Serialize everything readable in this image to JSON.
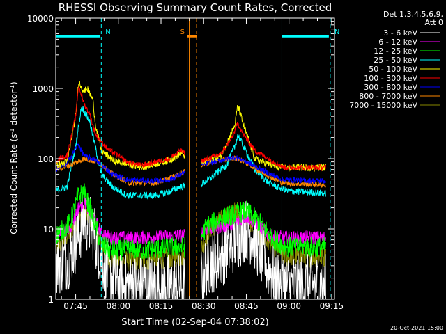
{
  "chart_data": {
    "type": "line",
    "title": "RHESSI Observing Summary Count Rates, Corrected",
    "xlabel": "Start Time (02-Sep-04 07:38:02)",
    "ylabel": "Corrected Count Rate (s⁻¹ detector⁻¹)",
    "ylabel_parts": {
      "pre": "Corrected Count Rate (s",
      "sup1": "-1",
      "mid": " detector",
      "sup2": "-1",
      "post": ")"
    },
    "yscale": "log",
    "xlim_min": [
      0,
      98
    ],
    "ylim": [
      1,
      10000
    ],
    "x_ticks": [
      {
        "label": "07:45",
        "min": 7
      },
      {
        "label": "08:00",
        "min": 22
      },
      {
        "label": "08:15",
        "min": 37
      },
      {
        "label": "08:30",
        "min": 52
      },
      {
        "label": "08:45",
        "min": 67
      },
      {
        "label": "09:00",
        "min": 82
      },
      {
        "label": "09:15",
        "min": 97
      }
    ],
    "y_ticks": [
      {
        "label": "1",
        "value": 1
      },
      {
        "label": "10",
        "value": 10
      },
      {
        "label": "100",
        "value": 100
      },
      {
        "label": "1000",
        "value": 1000
      },
      {
        "label": "10000",
        "value": 10000
      }
    ],
    "legend_header": [
      "Det 1,3,4,5,6,9,",
      "Att 0"
    ],
    "legend_position": "right",
    "series": [
      {
        "name": "3 - 6 keV",
        "color": "#ffffff",
        "noise": 0.45,
        "points": [
          [
            0,
            3
          ],
          [
            5,
            4
          ],
          [
            8,
            8
          ],
          [
            10,
            14
          ],
          [
            13,
            10
          ],
          [
            16,
            4
          ],
          [
            19,
            2
          ],
          [
            22,
            1.6
          ],
          [
            30,
            1.6
          ],
          [
            44,
            1.6
          ],
          [
            50,
            1.6
          ],
          [
            53,
            3
          ],
          [
            58,
            4
          ],
          [
            62,
            6
          ],
          [
            65,
            8
          ],
          [
            67,
            10
          ],
          [
            70,
            7
          ],
          [
            74,
            3
          ],
          [
            77,
            2
          ],
          [
            81,
            1.6
          ],
          [
            90,
            1.6
          ],
          [
            95,
            1.6
          ]
        ]
      },
      {
        "name": "6 - 12 keV",
        "color": "#ff00ff",
        "noise": 0.1,
        "points": [
          [
            0,
            8
          ],
          [
            5,
            10
          ],
          [
            8,
            20
          ],
          [
            10,
            25
          ],
          [
            13,
            15
          ],
          [
            16,
            9
          ],
          [
            19,
            7.5
          ],
          [
            30,
            7.5
          ],
          [
            44,
            8
          ],
          [
            50,
            8
          ],
          [
            53,
            10
          ],
          [
            60,
            11
          ],
          [
            67,
            15
          ],
          [
            71,
            12
          ],
          [
            75,
            8
          ],
          [
            81,
            7.5
          ],
          [
            95,
            7.5
          ]
        ]
      },
      {
        "name": "12 - 25 keV",
        "color": "#00ff00",
        "noise": 0.15,
        "points": [
          [
            0,
            8
          ],
          [
            5,
            12
          ],
          [
            8,
            30
          ],
          [
            10,
            33
          ],
          [
            13,
            15
          ],
          [
            16,
            6
          ],
          [
            19,
            5
          ],
          [
            30,
            5
          ],
          [
            44,
            5.5
          ],
          [
            50,
            6
          ],
          [
            53,
            11
          ],
          [
            60,
            15
          ],
          [
            67,
            18
          ],
          [
            72,
            12
          ],
          [
            77,
            7
          ],
          [
            81,
            5.5
          ],
          [
            95,
            5.5
          ]
        ]
      },
      {
        "name": "25 - 50 keV",
        "color": "#00ffff",
        "noise": 0.05,
        "points": [
          [
            0,
            35
          ],
          [
            4,
            40
          ],
          [
            7,
            150
          ],
          [
            9,
            550
          ],
          [
            10,
            480
          ],
          [
            12,
            330
          ],
          [
            14,
            140
          ],
          [
            16,
            60
          ],
          [
            20,
            40
          ],
          [
            25,
            30
          ],
          [
            35,
            30
          ],
          [
            40,
            34
          ],
          [
            44,
            40
          ],
          [
            50,
            40
          ],
          [
            55,
            55
          ],
          [
            60,
            80
          ],
          [
            63,
            150
          ],
          [
            64,
            220
          ],
          [
            66,
            150
          ],
          [
            70,
            70
          ],
          [
            75,
            45
          ],
          [
            81,
            35
          ],
          [
            95,
            32
          ]
        ]
      },
      {
        "name": "50 - 100 keV",
        "color": "#ffff00",
        "noise": 0.05,
        "points": [
          [
            0,
            80
          ],
          [
            4,
            90
          ],
          [
            7,
            400
          ],
          [
            8,
            1250
          ],
          [
            10,
            900
          ],
          [
            11,
            1000
          ],
          [
            13,
            700
          ],
          [
            14,
            300
          ],
          [
            16,
            130
          ],
          [
            20,
            95
          ],
          [
            30,
            75
          ],
          [
            40,
            95
          ],
          [
            44,
            120
          ],
          [
            50,
            85
          ],
          [
            58,
            110
          ],
          [
            63,
            300
          ],
          [
            64,
            580
          ],
          [
            66,
            300
          ],
          [
            70,
            100
          ],
          [
            78,
            75
          ],
          [
            95,
            75
          ]
        ]
      },
      {
        "name": "100 - 300 keV",
        "color": "#ff0000",
        "noise": 0.04,
        "points": [
          [
            0,
            95
          ],
          [
            4,
            110
          ],
          [
            7,
            400
          ],
          [
            8,
            1100
          ],
          [
            10,
            600
          ],
          [
            12,
            420
          ],
          [
            14,
            220
          ],
          [
            18,
            140
          ],
          [
            25,
            90
          ],
          [
            30,
            80
          ],
          [
            40,
            100
          ],
          [
            44,
            130
          ],
          [
            50,
            90
          ],
          [
            58,
            115
          ],
          [
            62,
            200
          ],
          [
            64,
            320
          ],
          [
            66,
            220
          ],
          [
            70,
            130
          ],
          [
            80,
            75
          ],
          [
            95,
            75
          ]
        ]
      },
      {
        "name": "300 - 800 keV",
        "color": "#0000ff",
        "noise": 0.04,
        "points": [
          [
            0,
            70
          ],
          [
            4,
            85
          ],
          [
            7,
            140
          ],
          [
            8,
            160
          ],
          [
            9,
            130
          ],
          [
            10,
            110
          ],
          [
            14,
            95
          ],
          [
            20,
            60
          ],
          [
            25,
            50
          ],
          [
            35,
            48
          ],
          [
            40,
            50
          ],
          [
            44,
            60
          ],
          [
            50,
            80
          ],
          [
            58,
            95
          ],
          [
            63,
            105
          ],
          [
            66,
            95
          ],
          [
            72,
            70
          ],
          [
            80,
            50
          ],
          [
            95,
            48
          ]
        ]
      },
      {
        "name": "800 - 7000 keV",
        "color": "#ff8800",
        "noise": 0.04,
        "points": [
          [
            0,
            70
          ],
          [
            5,
            80
          ],
          [
            10,
            100
          ],
          [
            15,
            90
          ],
          [
            20,
            60
          ],
          [
            26,
            45
          ],
          [
            35,
            45
          ],
          [
            40,
            52
          ],
          [
            44,
            62
          ],
          [
            50,
            80
          ],
          [
            58,
            95
          ],
          [
            63,
            102
          ],
          [
            66,
            92
          ],
          [
            72,
            65
          ],
          [
            80,
            45
          ],
          [
            95,
            42
          ]
        ]
      },
      {
        "name": "7000 - 15000 keV",
        "color": "#888800",
        "noise": 0.15,
        "points": [
          [
            0,
            5
          ],
          [
            4,
            8
          ],
          [
            8,
            13
          ],
          [
            10,
            16
          ],
          [
            12,
            15
          ],
          [
            15,
            8
          ],
          [
            18,
            4
          ],
          [
            22,
            3.5
          ],
          [
            30,
            3.5
          ],
          [
            44,
            4
          ],
          [
            50,
            4
          ],
          [
            54,
            10
          ],
          [
            60,
            15
          ],
          [
            64,
            18
          ],
          [
            67,
            15
          ],
          [
            72,
            8
          ],
          [
            78,
            5
          ],
          [
            81,
            4
          ],
          [
            95,
            4
          ]
        ]
      }
    ],
    "gaps_min": [
      [
        45.5,
        51
      ]
    ],
    "annotations": [
      {
        "label": "N",
        "color": "#00ffff",
        "kind": "night",
        "x_min": [
          0,
          16
        ],
        "y": 5500
      },
      {
        "label": "N",
        "color": "#00ffff",
        "kind": "night",
        "x_min": [
          79.5,
          96.5
        ],
        "y": 5500
      },
      {
        "label": "S",
        "color": "#ff8800",
        "kind": "saa",
        "x_min": [
          46.2,
          49.5
        ],
        "y": 5500
      }
    ],
    "timestamp": "20-Oct-2021 15:00"
  }
}
